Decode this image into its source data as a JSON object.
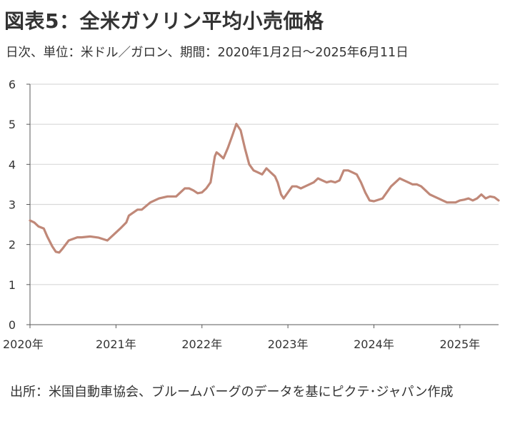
{
  "title": "図表5：全米ガソリン平均小売価格",
  "subtitle": "日次、単位：米ドル／ガロン、期間：2020年1月2日～2025年6月11日",
  "source": "出所：米国自動車協会、ブルームバーグのデータを基にピクテ･ジャパン作成",
  "colors": {
    "line": "#c08878",
    "grid": "#d9d9d9",
    "axis": "#595959"
  },
  "chart_data": {
    "type": "line",
    "title": "図表5：全米ガソリン平均小売価格",
    "xlabel": "",
    "ylabel": "",
    "ylim": [
      0,
      6
    ],
    "xlim": [
      2020.0,
      2025.45
    ],
    "y_ticks": [
      "0",
      "1",
      "2",
      "3",
      "4",
      "5",
      "6"
    ],
    "x_ticks": [
      {
        "value": 2020,
        "label": "2020年"
      },
      {
        "value": 2021,
        "label": "2021年"
      },
      {
        "value": 2022,
        "label": "2022年"
      },
      {
        "value": 2023,
        "label": "2023年"
      },
      {
        "value": 2024,
        "label": "2024年"
      },
      {
        "value": 2025,
        "label": "2025年"
      }
    ],
    "grid": "horizontal",
    "series": [
      {
        "x": [
          2020.0,
          2020.05,
          2020.1,
          2020.16,
          2020.2,
          2020.26,
          2020.3,
          2020.34,
          2020.38,
          2020.45,
          2020.55,
          2020.6,
          2020.7,
          2020.8,
          2020.9,
          2021.0,
          2021.05,
          2021.12,
          2021.15,
          2021.25,
          2021.3,
          2021.4,
          2021.5,
          2021.6,
          2021.7,
          2021.75,
          2021.8,
          2021.85,
          2021.9,
          2021.95,
          2022.0,
          2022.05,
          2022.1,
          2022.15,
          2022.17,
          2022.2,
          2022.25,
          2022.3,
          2022.35,
          2022.4,
          2022.45,
          2022.5,
          2022.55,
          2022.6,
          2022.65,
          2022.7,
          2022.75,
          2022.8,
          2022.85,
          2022.88,
          2022.92,
          2022.95,
          2023.0,
          2023.05,
          2023.1,
          2023.15,
          2023.2,
          2023.3,
          2023.35,
          2023.4,
          2023.45,
          2023.5,
          2023.55,
          2023.6,
          2023.65,
          2023.7,
          2023.75,
          2023.8,
          2023.85,
          2023.9,
          2023.95,
          2024.0,
          2024.1,
          2024.2,
          2024.3,
          2024.35,
          2024.4,
          2024.45,
          2024.5,
          2024.55,
          2024.6,
          2024.65,
          2024.7,
          2024.75,
          2024.8,
          2024.85,
          2024.9,
          2024.95,
          2025.0,
          2025.05,
          2025.1,
          2025.15,
          2025.2,
          2025.25,
          2025.3,
          2025.35,
          2025.4,
          2025.45
        ],
        "values": [
          2.6,
          2.55,
          2.45,
          2.4,
          2.2,
          1.95,
          1.82,
          1.8,
          1.9,
          2.1,
          2.18,
          2.18,
          2.2,
          2.17,
          2.1,
          2.3,
          2.4,
          2.55,
          2.72,
          2.87,
          2.87,
          3.05,
          3.15,
          3.2,
          3.2,
          3.3,
          3.4,
          3.4,
          3.35,
          3.28,
          3.3,
          3.4,
          3.55,
          4.2,
          4.3,
          4.25,
          4.15,
          4.4,
          4.7,
          5.01,
          4.85,
          4.4,
          4.0,
          3.85,
          3.8,
          3.75,
          3.9,
          3.8,
          3.7,
          3.55,
          3.25,
          3.15,
          3.3,
          3.45,
          3.45,
          3.4,
          3.45,
          3.55,
          3.65,
          3.6,
          3.55,
          3.58,
          3.55,
          3.6,
          3.85,
          3.85,
          3.8,
          3.75,
          3.55,
          3.3,
          3.1,
          3.08,
          3.15,
          3.45,
          3.65,
          3.6,
          3.55,
          3.5,
          3.5,
          3.45,
          3.35,
          3.25,
          3.2,
          3.15,
          3.1,
          3.05,
          3.05,
          3.05,
          3.1,
          3.12,
          3.15,
          3.1,
          3.15,
          3.25,
          3.15,
          3.2,
          3.18,
          3.1
        ]
      }
    ]
  }
}
